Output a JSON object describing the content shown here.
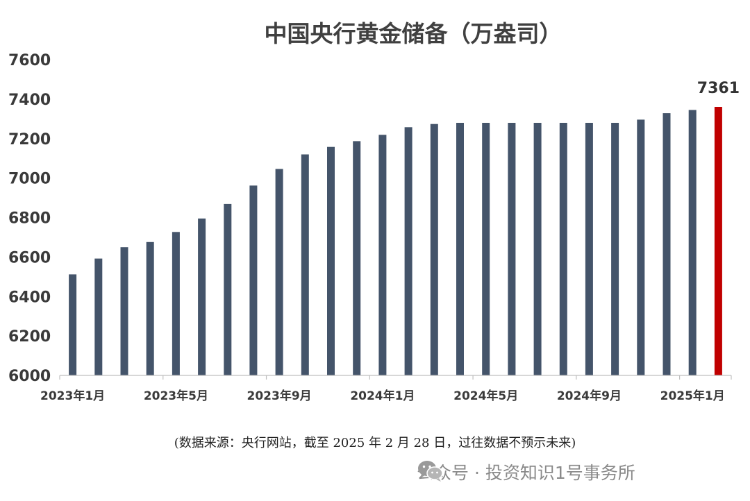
{
  "chart_data": {
    "type": "bar",
    "title": "中国央行黄金储备（万盎司）",
    "categories": [
      "2023年1月",
      "2023年2月",
      "2023年3月",
      "2023年4月",
      "2023年5月",
      "2023年6月",
      "2023年7月",
      "2023年8月",
      "2023年9月",
      "2023年10月",
      "2023年11月",
      "2023年12月",
      "2024年1月",
      "2024年2月",
      "2024年3月",
      "2024年4月",
      "2024年5月",
      "2024年6月",
      "2024年7月",
      "2024年8月",
      "2024年9月",
      "2024年10月",
      "2024年11月",
      "2024年12月",
      "2025年1月",
      "2025年2月"
    ],
    "values": [
      6512,
      6592,
      6650,
      6676,
      6727,
      6795,
      6869,
      6962,
      7046,
      7120,
      7158,
      7187,
      7219,
      7258,
      7274,
      7280,
      7280,
      7280,
      7280,
      7280,
      7280,
      7280,
      7296,
      7329,
      7345,
      7361
    ],
    "x_tick_labels": [
      "2023年1月",
      "2023年5月",
      "2023年9月",
      "2024年1月",
      "2024年5月",
      "2024年9月",
      "2025年1月"
    ],
    "ylim": [
      6000,
      7600
    ],
    "y_ticks": [
      6000,
      6200,
      6400,
      6600,
      6800,
      7000,
      7200,
      7400,
      7600
    ],
    "colors": {
      "bar": "#44546a",
      "highlight": "#c00000"
    },
    "highlight_label": "7361",
    "grid": false,
    "xlabel": "",
    "ylabel": ""
  },
  "footer": {
    "source": "(数据来源：央行网站，截至 2025 年 2 月 28 日，过往数据不预示未来)",
    "watermark_text": "公众号 · 投资知识1号事务所",
    "watermark_icon": "wechat-icon"
  }
}
